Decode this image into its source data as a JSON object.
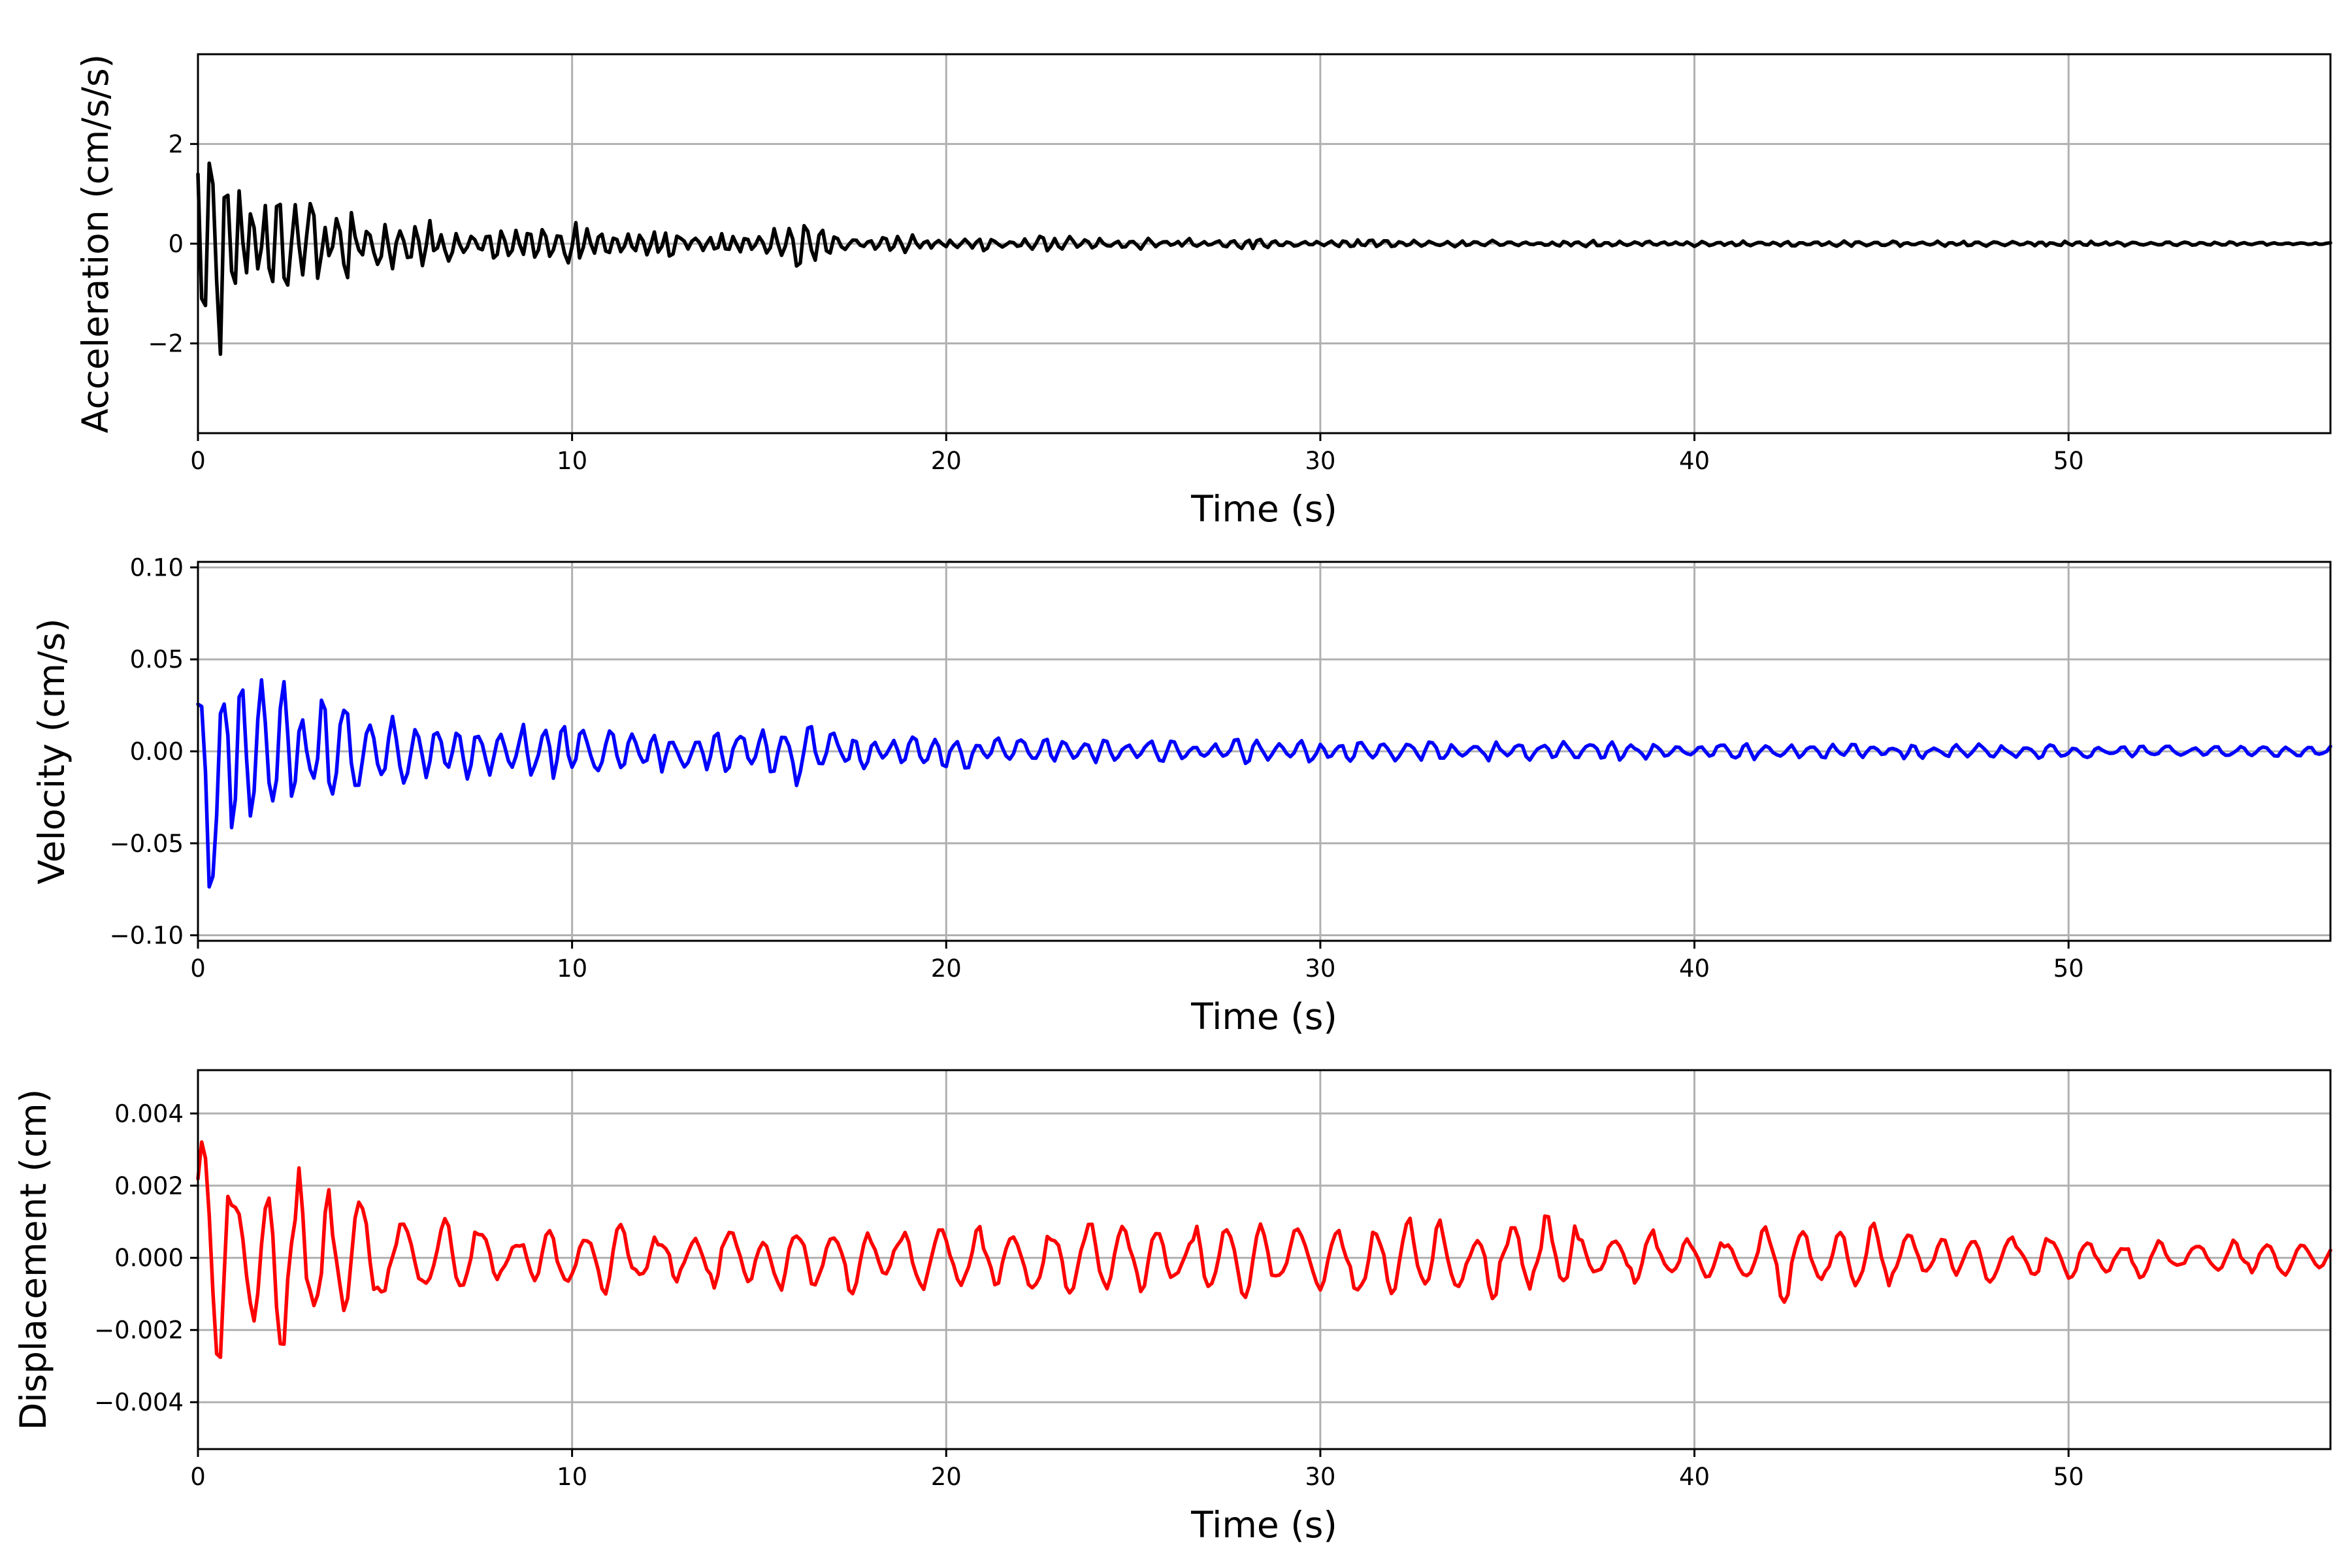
{
  "chart_data": [
    {
      "type": "line",
      "xlabel": "Time (s)",
      "ylabel": "Acceleration (cm/s/s)",
      "xlim": [
        0,
        57
      ],
      "ylim": [
        -3.8,
        3.8
      ],
      "xticks": [
        0,
        10,
        20,
        30,
        40,
        50
      ],
      "xtick_labels": [
        "0",
        "10",
        "20",
        "30",
        "40",
        "50"
      ],
      "yticks": [
        -2,
        0,
        2
      ],
      "ytick_labels": [
        "−2",
        "0",
        "2"
      ],
      "grid": true,
      "series": [
        {
          "color": "#000000",
          "duration": 57,
          "points_per_second": 10,
          "oscillation_frequency_hz": 2.6,
          "envelope": [
            [
              0,
              3.1
            ],
            [
              0.6,
              3.4
            ],
            [
              1,
              1.9
            ],
            [
              2,
              1.2
            ],
            [
              3,
              0.9
            ],
            [
              5,
              0.55
            ],
            [
              8,
              0.35
            ],
            [
              10,
              0.45
            ],
            [
              12,
              0.28
            ],
            [
              15,
              0.22
            ],
            [
              16,
              0.55
            ],
            [
              17,
              0.2
            ],
            [
              20,
              0.18
            ],
            [
              25,
              0.13
            ],
            [
              30,
              0.08
            ],
            [
              40,
              0.06
            ],
            [
              50,
              0.05
            ],
            [
              57,
              0.03
            ]
          ]
        }
      ]
    },
    {
      "type": "line",
      "xlabel": "Time (s)",
      "ylabel": "Velocity (cm/s)",
      "xlim": [
        0,
        57
      ],
      "ylim": [
        -0.103,
        0.103
      ],
      "xticks": [
        0,
        10,
        20,
        30,
        40,
        50
      ],
      "xtick_labels": [
        "0",
        "10",
        "20",
        "30",
        "40",
        "50"
      ],
      "yticks": [
        -0.1,
        -0.05,
        0.0,
        0.05,
        0.1
      ],
      "ytick_labels": [
        "−0.10",
        "−0.05",
        "0.00",
        "0.05",
        "0.10"
      ],
      "grid": true,
      "series": [
        {
          "color": "#0000ff",
          "duration": 57,
          "points_per_second": 10,
          "oscillation_frequency_hz": 1.7,
          "envelope": [
            [
              0,
              0.075
            ],
            [
              0.5,
              0.09
            ],
            [
              1,
              0.05
            ],
            [
              2,
              0.05
            ],
            [
              3,
              0.032
            ],
            [
              5,
              0.02
            ],
            [
              8,
              0.016
            ],
            [
              10,
              0.018
            ],
            [
              12,
              0.012
            ],
            [
              15,
              0.012
            ],
            [
              16,
              0.027
            ],
            [
              17,
              0.01
            ],
            [
              20,
              0.01
            ],
            [
              25,
              0.008
            ],
            [
              30,
              0.006
            ],
            [
              40,
              0.005
            ],
            [
              50,
              0.004
            ],
            [
              57,
              0.003
            ]
          ]
        }
      ]
    },
    {
      "type": "line",
      "xlabel": "Time (s)",
      "ylabel": "Displacement (cm)",
      "xlim": [
        0,
        57
      ],
      "ylim": [
        -0.0053,
        0.0052
      ],
      "xticks": [
        0,
        10,
        20,
        30,
        40,
        50
      ],
      "xtick_labels": [
        "0",
        "10",
        "20",
        "30",
        "40",
        "50"
      ],
      "yticks": [
        -0.004,
        -0.002,
        0.0,
        0.002,
        0.004
      ],
      "ytick_labels": [
        "−0.004",
        "−0.002",
        "0.000",
        "0.002",
        "0.004"
      ],
      "grid": true,
      "series": [
        {
          "color": "#ff0000",
          "duration": 57,
          "points_per_second": 10,
          "oscillation_frequency_hz": 1.05,
          "envelope": [
            [
              0,
              0.0034
            ],
            [
              0.5,
              0.0048
            ],
            [
              1,
              0.0035
            ],
            [
              2,
              0.0037
            ],
            [
              3,
              0.002
            ],
            [
              4.5,
              0.0021
            ],
            [
              6,
              0.0013
            ],
            [
              8,
              0.001
            ],
            [
              10,
              0.001
            ],
            [
              15,
              0.0012
            ],
            [
              20,
              0.001
            ],
            [
              25,
              0.0011
            ],
            [
              30,
              0.0011
            ],
            [
              36,
              0.0013
            ],
            [
              40,
              0.0006
            ],
            [
              42.5,
              0.0013
            ],
            [
              45,
              0.001
            ],
            [
              50,
              0.0006
            ],
            [
              57,
              0.0005
            ]
          ]
        }
      ]
    }
  ]
}
